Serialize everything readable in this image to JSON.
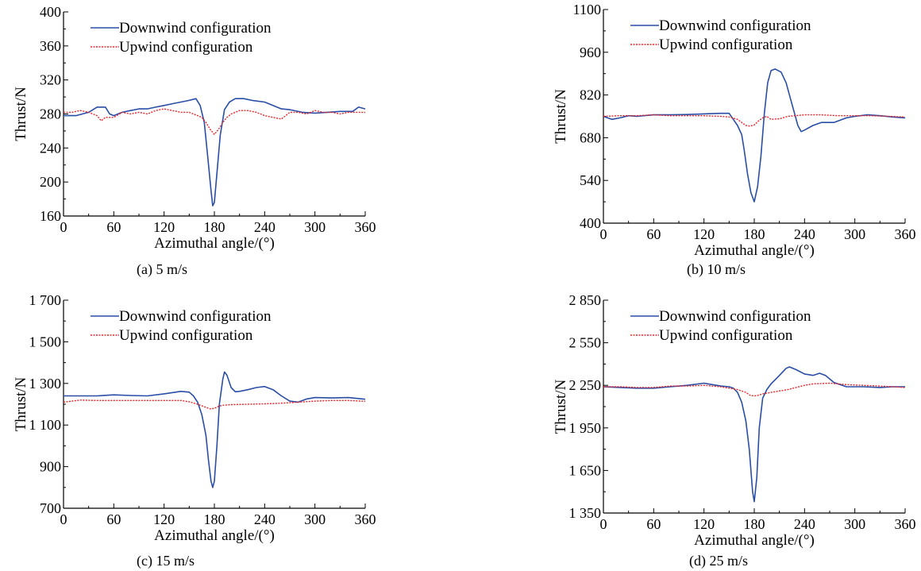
{
  "colors": {
    "downwind": "#2a4ea6",
    "upwind": "#e8242a"
  },
  "chart_data": [
    {
      "type": "line",
      "caption": "(a) 5 m/s",
      "xlabel": "Azimuthal angle/(°)",
      "ylabel": "Thrust/N",
      "xlim": [
        0,
        360
      ],
      "ylim": [
        160,
        400
      ],
      "xticks": [
        "0",
        "60",
        "120",
        "180",
        "240",
        "300",
        "360"
      ],
      "yticks": [
        "160",
        "200",
        "240",
        "280",
        "320",
        "360",
        "400"
      ],
      "legend_position": "top-left",
      "grid": false,
      "series": [
        {
          "name": "Downwind configuration",
          "style": "solid",
          "x": [
            0,
            15,
            30,
            40,
            50,
            55,
            60,
            70,
            80,
            90,
            100,
            110,
            120,
            130,
            140,
            150,
            158,
            163,
            168,
            172,
            176,
            178,
            180,
            183,
            187,
            192,
            198,
            205,
            210,
            215,
            225,
            240,
            260,
            270,
            285,
            300,
            315,
            330,
            345,
            352,
            360
          ],
          "y": [
            278,
            278,
            282,
            288,
            288,
            280,
            278,
            282,
            284,
            286,
            286,
            288,
            290,
            292,
            294,
            296,
            298,
            290,
            270,
            230,
            190,
            172,
            176,
            210,
            255,
            285,
            294,
            298,
            298,
            298,
            296,
            294,
            286,
            285,
            282,
            281,
            282,
            283,
            283,
            288,
            286
          ]
        },
        {
          "name": "Upwind configuration",
          "style": "dotted",
          "x": [
            0,
            10,
            20,
            30,
            40,
            45,
            50,
            60,
            70,
            80,
            90,
            100,
            110,
            120,
            130,
            140,
            150,
            160,
            165,
            170,
            175,
            180,
            185,
            190,
            195,
            200,
            210,
            220,
            230,
            240,
            250,
            260,
            270,
            280,
            290,
            300,
            310,
            320,
            330,
            340,
            350,
            360
          ],
          "y": [
            282,
            282,
            284,
            282,
            278,
            272,
            276,
            276,
            282,
            280,
            282,
            280,
            284,
            286,
            284,
            282,
            282,
            278,
            276,
            270,
            262,
            256,
            262,
            270,
            276,
            280,
            284,
            284,
            282,
            278,
            276,
            274,
            282,
            282,
            280,
            284,
            282,
            282,
            280,
            282,
            282,
            282
          ]
        }
      ]
    },
    {
      "type": "line",
      "caption": "(b) 10 m/s",
      "xlabel": "Azimuthal angle/(°)",
      "ylabel": "Thrust/N",
      "xlim": [
        0,
        360
      ],
      "ylim": [
        400,
        1100
      ],
      "xticks": [
        "0",
        "60",
        "120",
        "180",
        "240",
        "300",
        "360"
      ],
      "yticks": [
        "400",
        "540",
        "680",
        "820",
        "960",
        "1100"
      ],
      "legend_position": "top-left",
      "grid": false,
      "series": [
        {
          "name": "Downwind configuration",
          "style": "solid",
          "x": [
            0,
            10,
            20,
            30,
            40,
            60,
            80,
            100,
            120,
            140,
            150,
            155,
            160,
            165,
            168,
            172,
            176,
            180,
            184,
            188,
            192,
            196,
            200,
            205,
            212,
            218,
            222,
            228,
            232,
            236,
            240,
            250,
            260,
            275,
            290,
            300,
            315,
            330,
            345,
            360
          ],
          "y": [
            750,
            740,
            745,
            752,
            750,
            755,
            755,
            756,
            758,
            760,
            760,
            740,
            720,
            690,
            640,
            560,
            500,
            470,
            520,
            620,
            760,
            860,
            900,
            905,
            895,
            860,
            820,
            760,
            720,
            700,
            705,
            720,
            730,
            730,
            745,
            750,
            755,
            752,
            748,
            745
          ]
        },
        {
          "name": "Upwind configuration",
          "style": "dotted",
          "x": [
            0,
            20,
            40,
            60,
            80,
            100,
            120,
            140,
            150,
            160,
            165,
            170,
            175,
            180,
            185,
            190,
            195,
            200,
            210,
            220,
            240,
            260,
            280,
            300,
            320,
            340,
            360
          ],
          "y": [
            750,
            752,
            752,
            755,
            752,
            752,
            752,
            750,
            748,
            740,
            730,
            720,
            718,
            722,
            735,
            745,
            750,
            740,
            742,
            750,
            755,
            755,
            752,
            752,
            752,
            750,
            748
          ]
        }
      ]
    },
    {
      "type": "line",
      "caption": "(c) 15 m/s",
      "xlabel": "Azimuthal angle/(°)",
      "ylabel": "Thrust/N",
      "xlim": [
        0,
        360
      ],
      "ylim": [
        700,
        1700
      ],
      "xticks": [
        "0",
        "60",
        "120",
        "180",
        "240",
        "300",
        "360"
      ],
      "yticks": [
        "700",
        "900",
        "1 100",
        "1 300",
        "1 500",
        "1 700"
      ],
      "legend_position": "top-left",
      "grid": false,
      "series": [
        {
          "name": "Downwind configuration",
          "style": "solid",
          "x": [
            0,
            20,
            40,
            60,
            80,
            100,
            120,
            140,
            150,
            155,
            160,
            165,
            170,
            173,
            176,
            178,
            180,
            183,
            186,
            190,
            192,
            195,
            200,
            205,
            210,
            220,
            230,
            240,
            250,
            260,
            270,
            280,
            290,
            300,
            320,
            340,
            355,
            360
          ],
          "y": [
            1240,
            1240,
            1240,
            1245,
            1242,
            1240,
            1250,
            1262,
            1258,
            1240,
            1210,
            1150,
            1050,
            930,
            830,
            800,
            830,
            1000,
            1200,
            1320,
            1355,
            1340,
            1280,
            1260,
            1262,
            1270,
            1280,
            1285,
            1270,
            1240,
            1215,
            1210,
            1225,
            1232,
            1230,
            1232,
            1226,
            1224
          ]
        },
        {
          "name": "Upwind configuration",
          "style": "dotted",
          "x": [
            0,
            20,
            40,
            60,
            80,
            100,
            120,
            140,
            150,
            160,
            170,
            175,
            180,
            185,
            190,
            200,
            220,
            240,
            260,
            280,
            300,
            320,
            340,
            360
          ],
          "y": [
            1210,
            1220,
            1218,
            1218,
            1218,
            1218,
            1218,
            1218,
            1212,
            1200,
            1185,
            1178,
            1180,
            1190,
            1195,
            1198,
            1200,
            1202,
            1205,
            1210,
            1215,
            1218,
            1218,
            1214
          ]
        }
      ]
    },
    {
      "type": "line",
      "caption": "(d) 25 m/s",
      "xlabel": "Azimuthal angle/(°)",
      "ylabel": "Thrust/N",
      "xlim": [
        0,
        360
      ],
      "ylim": [
        1350,
        2850
      ],
      "xticks": [
        "0",
        "60",
        "120",
        "180",
        "240",
        "300",
        "360"
      ],
      "yticks": [
        "1 350",
        "1 650",
        "1 950",
        "2 250",
        "2 550",
        "2 850"
      ],
      "legend_position": "top-left",
      "grid": false,
      "series": [
        {
          "name": "Downwind configuration",
          "style": "solid",
          "x": [
            0,
            20,
            40,
            60,
            80,
            100,
            120,
            130,
            140,
            150,
            155,
            160,
            165,
            170,
            174,
            178,
            180,
            183,
            186,
            190,
            195,
            200,
            210,
            218,
            222,
            230,
            240,
            250,
            258,
            265,
            275,
            290,
            310,
            330,
            345,
            360
          ],
          "y": [
            2240,
            2235,
            2230,
            2230,
            2240,
            2250,
            2265,
            2255,
            2245,
            2240,
            2230,
            2200,
            2130,
            2000,
            1800,
            1500,
            1430,
            1600,
            1950,
            2160,
            2220,
            2260,
            2320,
            2370,
            2380,
            2360,
            2330,
            2320,
            2335,
            2320,
            2270,
            2240,
            2240,
            2235,
            2240,
            2240
          ]
        },
        {
          "name": "Upwind configuration",
          "style": "dotted",
          "x": [
            0,
            20,
            40,
            60,
            80,
            100,
            120,
            140,
            160,
            170,
            175,
            180,
            185,
            190,
            200,
            220,
            240,
            250,
            270,
            290,
            310,
            330,
            345,
            360
          ],
          "y": [
            2240,
            2240,
            2235,
            2235,
            2245,
            2245,
            2250,
            2240,
            2220,
            2200,
            2180,
            2175,
            2180,
            2190,
            2200,
            2220,
            2250,
            2260,
            2265,
            2255,
            2250,
            2245,
            2240,
            2235
          ]
        }
      ]
    }
  ]
}
